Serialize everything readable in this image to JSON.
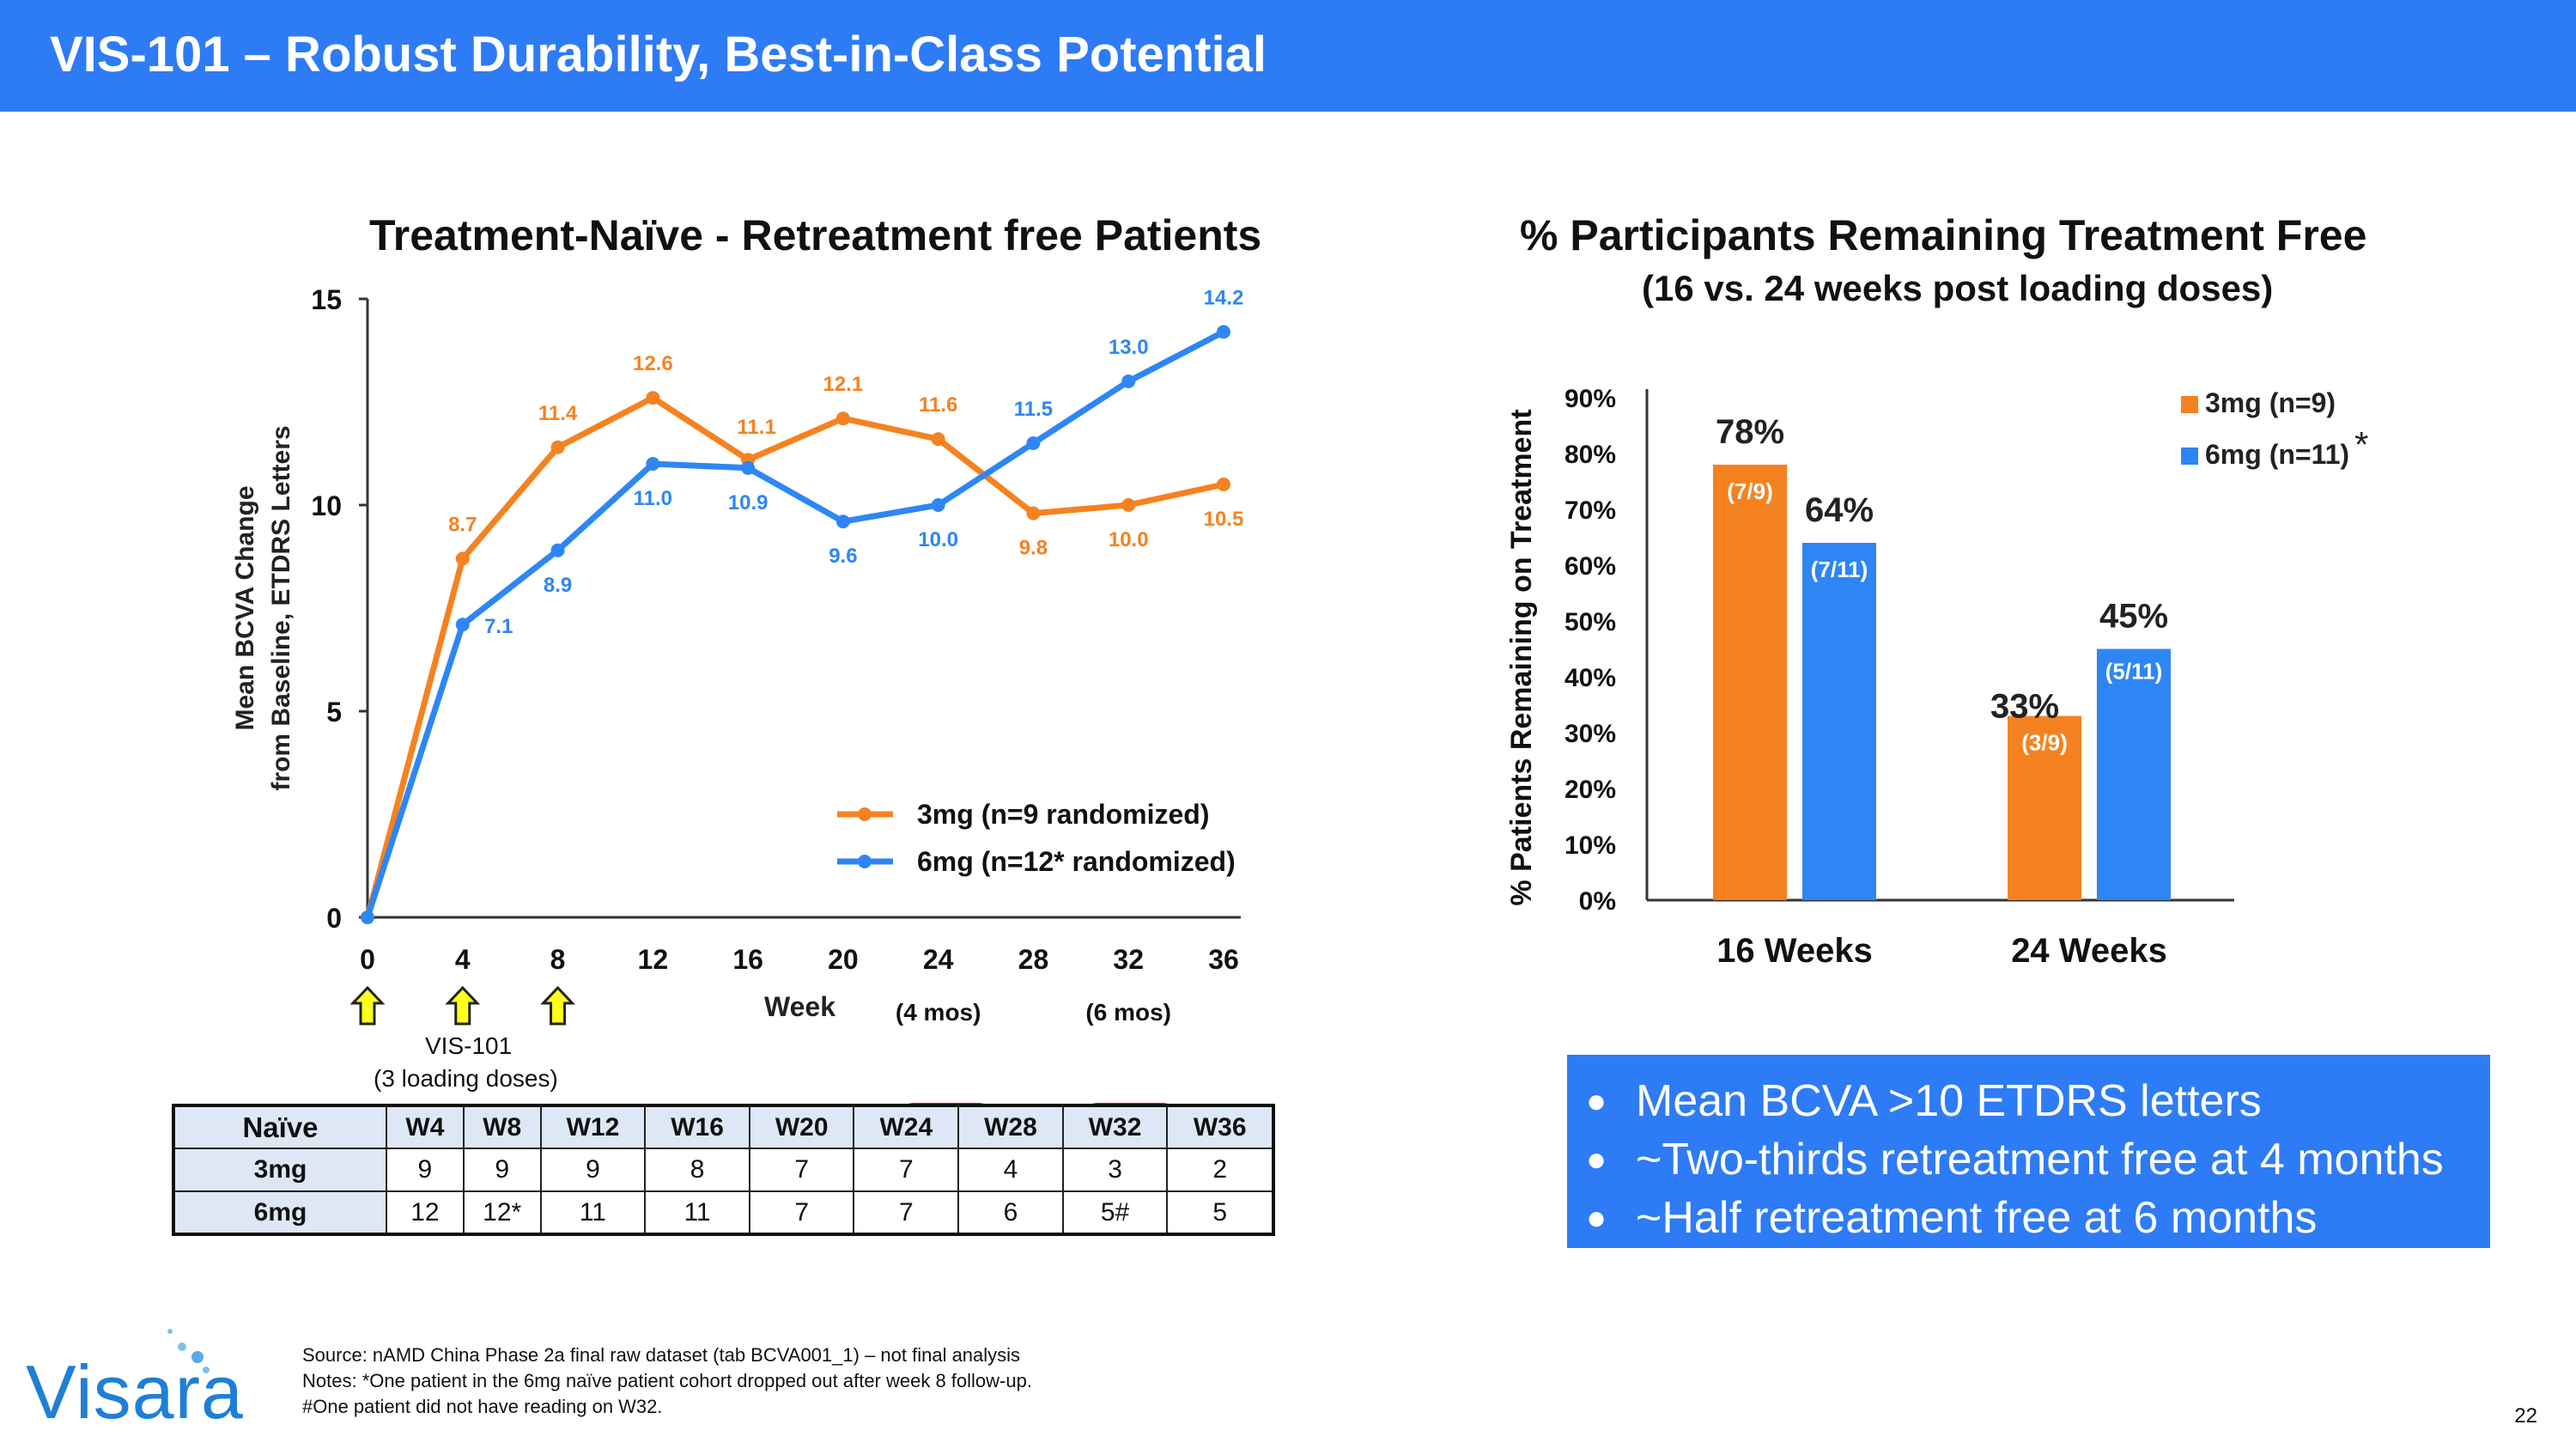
{
  "header": {
    "title": "VIS-101 – Robust Durability, Best-in-Class Potential",
    "bar_color": "#2E7BF6"
  },
  "colors": {
    "orange": "#F58220",
    "blue": "#2E86F5",
    "highlight": "#D32020"
  },
  "chart_data": [
    {
      "type": "line",
      "title": "Treatment-Naïve - Retreatment free Patients",
      "xlabel": "Week",
      "ylabel_line1": "Mean BCVA Change",
      "ylabel_line2": "from Baseline, ETDRS Letters",
      "x": [
        0,
        4,
        8,
        12,
        16,
        20,
        24,
        28,
        32,
        36
      ],
      "xticks": [
        "0",
        "4",
        "8",
        "12",
        "16",
        "20",
        "24",
        "28",
        "32",
        "36"
      ],
      "yticks": [
        "0",
        "5",
        "10",
        "15"
      ],
      "xlim": [
        0,
        36
      ],
      "ylim": [
        0,
        15
      ],
      "x_annotations": [
        {
          "x": 24,
          "text": "(4 mos)"
        },
        {
          "x": 32,
          "text": "(6 mos)"
        }
      ],
      "series": [
        {
          "name": "3mg (n=9 randomized)",
          "color": "#F58220",
          "values": [
            0,
            8.7,
            11.4,
            12.6,
            11.1,
            12.1,
            11.6,
            9.8,
            10.0,
            10.5
          ],
          "labels": [
            "",
            "8.7",
            "11.4",
            "12.6",
            "11.1",
            "12.1",
            "11.6",
            "9.8",
            "10.0",
            "10.5"
          ]
        },
        {
          "name": "6mg (n=12* randomized)",
          "color": "#2E86F5",
          "values": [
            0,
            7.1,
            8.9,
            11.0,
            10.9,
            9.6,
            10.0,
            11.5,
            13.0,
            14.2
          ],
          "labels": [
            "",
            "7.1",
            "8.9",
            "11.0",
            "10.9",
            "9.6",
            "10.0",
            "11.5",
            "13.0",
            "14.2"
          ]
        }
      ],
      "dosing_weeks": [
        0,
        4,
        8
      ],
      "dosing_label_line1": "VIS-101",
      "dosing_label_line2": "(3 loading doses)"
    },
    {
      "type": "bar",
      "title": "% Participants Remaining Treatment Free",
      "subtitle": "(16 vs. 24 weeks post loading doses)",
      "ylabel": "% Patients Remaining on Treatment",
      "categories": [
        "16 Weeks",
        "24 Weeks"
      ],
      "yticks": [
        "0%",
        "10%",
        "20%",
        "30%",
        "40%",
        "50%",
        "60%",
        "70%",
        "80%",
        "90%"
      ],
      "ylim": [
        0,
        90
      ],
      "legend_note": "*",
      "series": [
        {
          "name": "3mg (n=9)",
          "color": "#F58220",
          "values": [
            78,
            33
          ],
          "value_labels": [
            "78%",
            "33%"
          ],
          "fractions": [
            "(7/9)",
            "(3/9)"
          ]
        },
        {
          "name": "6mg (n=11)",
          "color": "#2E86F5",
          "values": [
            64,
            45
          ],
          "value_labels": [
            "64%",
            "45%"
          ],
          "fractions": [
            "(7/11)",
            "(5/11)"
          ]
        }
      ]
    }
  ],
  "table": {
    "corner": "Naïve",
    "columns": [
      "W4",
      "W8",
      "W12",
      "W16",
      "W20",
      "W24",
      "W28",
      "W32",
      "W36"
    ],
    "rows": [
      {
        "label": "3mg",
        "cells": [
          "9",
          "9",
          "9",
          "8",
          "7",
          "7",
          "4",
          "3",
          "2"
        ]
      },
      {
        "label": "6mg",
        "cells": [
          "12",
          "12*",
          "11",
          "11",
          "7",
          "7",
          "6",
          "5#",
          "5"
        ]
      }
    ]
  },
  "bullets": [
    "Mean BCVA >10 ETDRS letters",
    "~Two-thirds retreatment free at 4 months",
    "~Half retreatment free at 6 months"
  ],
  "footer": {
    "source": "Source:  nAMD China Phase 2a final raw dataset (tab BCVA001_1) – not final analysis",
    "notes": "Notes:  *One patient in the 6mg naïve patient cohort dropped out after week 8 follow-up.",
    "note2": "#One patient did not have reading on W32."
  },
  "logo": "Visara",
  "page_number": "22"
}
